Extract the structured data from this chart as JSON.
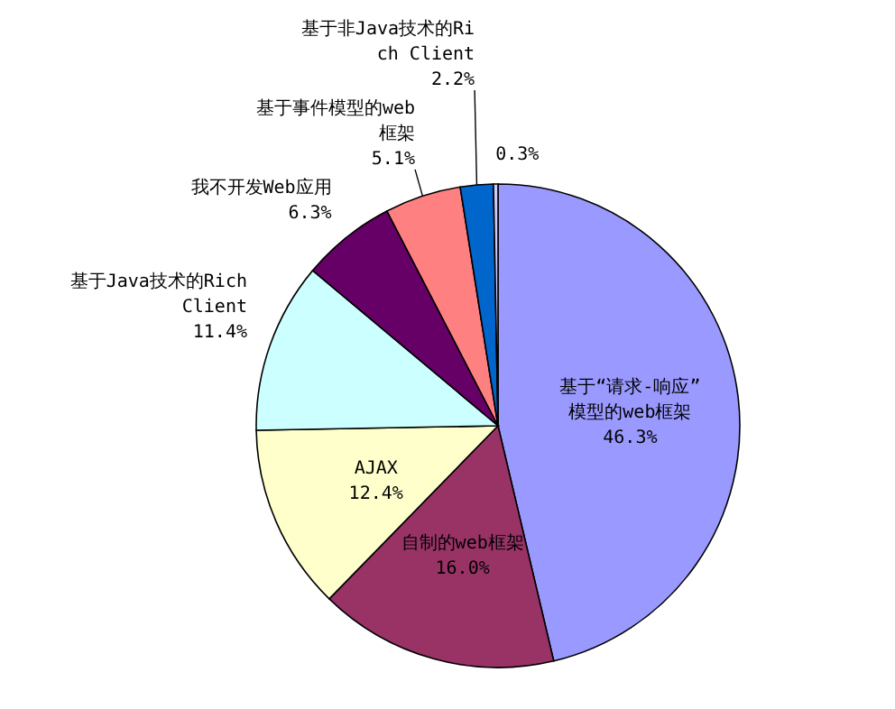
{
  "chart_data": {
    "type": "pie",
    "categories": [
      "基于“请求-响应”模型的web框架",
      "自制的web框架",
      "AJAX",
      "基于Java技术的Rich Client",
      "我不开发Web应用",
      "基于事件模型的web框架",
      "基于非Java技术的Rich Client",
      null
    ],
    "values": [
      46.3,
      16.0,
      12.4,
      11.4,
      6.3,
      5.1,
      2.2,
      0.3
    ],
    "value_labels": [
      "46.3%",
      "16.0%",
      "12.4%",
      "11.4%",
      "6.3%",
      "5.1%",
      "2.2%",
      "0.3%"
    ],
    "colors": [
      "#9999ff",
      "#993366",
      "#ffffcc",
      "#ccffff",
      "#660066",
      "#ff8080",
      "#0066cc",
      "#ccccff"
    ],
    "legend": false
  }
}
